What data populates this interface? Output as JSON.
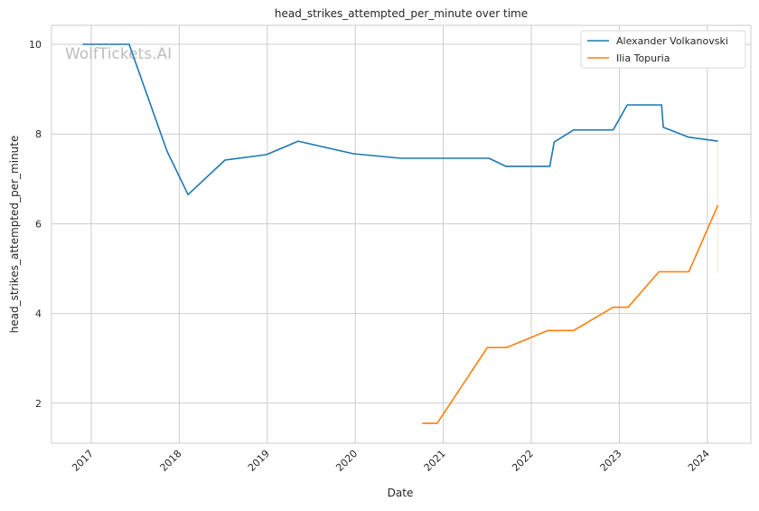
{
  "chart_data": {
    "type": "line",
    "title": "head_strikes_attempted_per_minute over time",
    "xlabel": "Date",
    "ylabel": "head_strikes_attempted_per_minute",
    "xlim": [
      2016.55,
      2024.5
    ],
    "ylim": [
      1.1,
      10.4
    ],
    "xticks": [
      "2017",
      "2018",
      "2019",
      "2020",
      "2021",
      "2022",
      "2023",
      "2024"
    ],
    "yticks": [
      2,
      4,
      6,
      8,
      10
    ],
    "grid": true,
    "legend_position": "top-right",
    "watermark": "WolfTickets.AI",
    "series": [
      {
        "name": "Alexander Volkanovski",
        "color": "#1f77b4",
        "x": [
          2016.9,
          2017.43,
          2017.86,
          2018.1,
          2018.52,
          2018.99,
          2019.35,
          2019.98,
          2020.52,
          2021.52,
          2021.71,
          2022.21,
          2022.26,
          2022.48,
          2022.93,
          2023.09,
          2023.48,
          2023.5,
          2023.79,
          2024.12
        ],
        "y": [
          10.0,
          10.0,
          7.62,
          6.65,
          7.42,
          7.54,
          7.84,
          7.56,
          7.46,
          7.46,
          7.28,
          7.28,
          7.82,
          8.09,
          8.09,
          8.65,
          8.65,
          8.15,
          7.93,
          7.84
        ]
      },
      {
        "name": "Ilia Topuria",
        "color": "#ff7f0e",
        "x": [
          2020.76,
          2020.93,
          2021.5,
          2021.72,
          2022.19,
          2022.48,
          2022.93,
          2023.1,
          2023.45,
          2023.79,
          2024.12
        ],
        "y": [
          1.55,
          1.55,
          3.24,
          3.24,
          3.62,
          3.62,
          4.14,
          4.14,
          4.93,
          4.93,
          6.41
        ]
      }
    ]
  }
}
